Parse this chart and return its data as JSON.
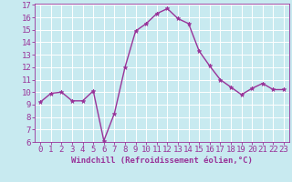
{
  "x": [
    0,
    1,
    2,
    3,
    4,
    5,
    6,
    7,
    8,
    9,
    10,
    11,
    12,
    13,
    14,
    15,
    16,
    17,
    18,
    19,
    20,
    21,
    22,
    23
  ],
  "y": [
    9.2,
    9.9,
    10.0,
    9.3,
    9.3,
    10.1,
    6.1,
    8.3,
    12.0,
    14.9,
    15.5,
    16.3,
    16.7,
    15.9,
    15.5,
    13.3,
    12.1,
    11.0,
    10.4,
    9.8,
    10.3,
    10.7,
    10.2,
    10.2
  ],
  "line_color": "#993399",
  "marker": "*",
  "marker_size": 3.5,
  "background_color": "#c8eaf0",
  "grid_color": "#ffffff",
  "xlabel": "Windchill (Refroidissement éolien,°C)",
  "ylabel": "",
  "ylim": [
    6,
    17
  ],
  "xlim": [
    -0.5,
    23.5
  ],
  "yticks": [
    6,
    7,
    8,
    9,
    10,
    11,
    12,
    13,
    14,
    15,
    16,
    17
  ],
  "xticks": [
    0,
    1,
    2,
    3,
    4,
    5,
    6,
    7,
    8,
    9,
    10,
    11,
    12,
    13,
    14,
    15,
    16,
    17,
    18,
    19,
    20,
    21,
    22,
    23
  ],
  "tick_color": "#993399",
  "label_color": "#993399",
  "xlabel_fontsize": 6.5,
  "tick_fontsize": 6.5,
  "line_width": 1.0
}
